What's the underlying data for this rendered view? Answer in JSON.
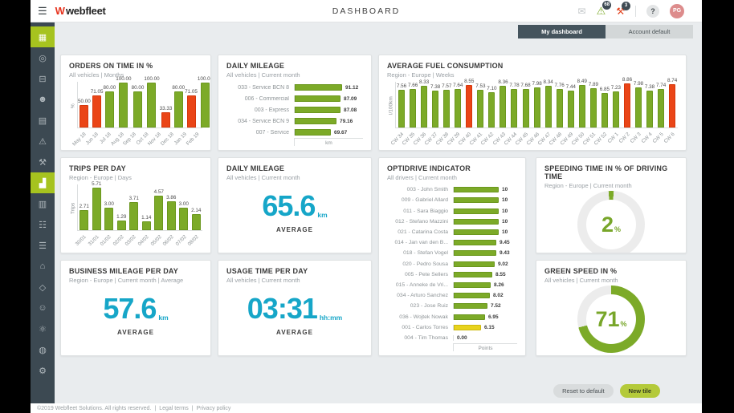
{
  "header": {
    "menu_icon": "☰",
    "logo_mark": "W",
    "logo_text": "webfleet",
    "title": "DASHBOARD",
    "icons": {
      "messages_glyph": "✉",
      "alerts_glyph": "⚠",
      "alerts_badge": "68",
      "maintenance_glyph": "⚒",
      "maintenance_badge": "3",
      "help_label": "?",
      "avatar_initials": "PG"
    }
  },
  "sidebar": {
    "items": [
      {
        "name": "map",
        "glyph": "▦",
        "active": true
      },
      {
        "name": "map-search",
        "glyph": "◎",
        "active": false
      },
      {
        "name": "vehicles",
        "glyph": "⊟",
        "active": false
      },
      {
        "name": "drivers",
        "glyph": "☻",
        "active": false
      },
      {
        "name": "orders",
        "glyph": "▤",
        "active": false
      },
      {
        "name": "alerts",
        "glyph": "⚠",
        "active": false
      },
      {
        "name": "maintenance",
        "glyph": "⚒",
        "active": false
      },
      {
        "name": "reports",
        "glyph": "▟",
        "active": true
      },
      {
        "name": "logbook",
        "glyph": "▥",
        "active": false
      },
      {
        "name": "print",
        "glyph": "☷",
        "active": false
      },
      {
        "name": "contacts",
        "glyph": "☰",
        "active": false
      },
      {
        "name": "company",
        "glyph": "⌂",
        "active": false
      },
      {
        "name": "areas",
        "glyph": "◇",
        "active": false
      },
      {
        "name": "users",
        "glyph": "☺",
        "active": false
      },
      {
        "name": "connections",
        "glyph": "⚛",
        "active": false
      },
      {
        "name": "webfleet-services",
        "glyph": "◍",
        "active": false
      },
      {
        "name": "settings",
        "glyph": "⚙",
        "active": false
      }
    ]
  },
  "tabs": [
    {
      "label": "My dashboard",
      "active": true
    },
    {
      "label": "Account default",
      "active": false
    }
  ],
  "tiles": [
    {
      "id": "orders-on-time",
      "title": "ORDERS ON TIME IN %",
      "subtitle": "All vehicles  |  Months",
      "type": "vbar",
      "chart": {
        "type": "bar",
        "ylabel": "%",
        "ymax": 100,
        "categories": [
          "May 18",
          "Jun 18",
          "Jul 18",
          "Aug 18",
          "Sep 18",
          "Oct 18",
          "Nov 18",
          "Dec 18",
          "Jan 19",
          "Feb 19"
        ],
        "values": [
          50.0,
          71.05,
          80.0,
          100.0,
          80.0,
          100.0,
          33.33,
          80.0,
          71.05,
          100.0
        ],
        "labels": [
          "50.00",
          "71.05",
          "80.00",
          "100.00",
          "80.00",
          "100.00",
          "33.33",
          "80.00",
          "71.05",
          "100.00"
        ],
        "colors": [
          "red",
          "red",
          "green",
          "green",
          "green",
          "green",
          "red",
          "green",
          "red",
          "green"
        ]
      }
    },
    {
      "id": "daily-mileage-bars",
      "title": "DAILY MILEAGE",
      "subtitle": "All vehicles  |  Current month",
      "type": "hbar",
      "chart": {
        "type": "bar",
        "orientation": "horizontal",
        "xlabel": "km",
        "xmax": 95,
        "categories": [
          "033 - Service BCN 8",
          "006 - Commercial",
          "003 - Express",
          "034 - Service BCN 9",
          "007 - Service"
        ],
        "values": [
          91.12,
          87.09,
          87.08,
          79.16,
          69.67
        ],
        "labels": [
          "91.12",
          "87.09",
          "87.08",
          "79.16",
          "69.67"
        ],
        "colors": [
          "green",
          "green",
          "green",
          "green",
          "green"
        ]
      }
    },
    {
      "id": "avg-fuel-consumption",
      "title": "AVERAGE FUEL CONSUMPTION",
      "subtitle": "Region - Europe  |  Weeks",
      "type": "vbar",
      "chart": {
        "type": "bar",
        "ylabel": "l/100km",
        "ymax": 9,
        "categories": [
          "CW 34",
          "CW 35",
          "CW 36",
          "CW 37",
          "CW 38",
          "CW 39",
          "CW 40",
          "CW 41",
          "CW 42",
          "CW 43",
          "CW 44",
          "CW 45",
          "CW 46",
          "CW 47",
          "CW 48",
          "CW 49",
          "CW 50",
          "CW 51",
          "CW 52",
          "CW 1",
          "CW 2",
          "CW 3",
          "CW 4",
          "CW 5",
          "CW 6"
        ],
        "values": [
          7.56,
          7.66,
          8.33,
          7.38,
          7.57,
          7.64,
          8.55,
          7.53,
          7.1,
          8.36,
          7.78,
          7.68,
          7.98,
          8.34,
          7.76,
          7.44,
          8.49,
          7.89,
          6.85,
          7.23,
          8.86,
          7.98,
          7.38,
          7.74,
          8.74
        ],
        "labels": [
          "7.56",
          "7.66",
          "8.33",
          "7.38",
          "7.57",
          "7.64",
          "8.55",
          "7.53",
          "7.10",
          "8.36",
          "7.78",
          "7.68",
          "7.98",
          "8.34",
          "7.76",
          "7.44",
          "8.49",
          "7.89",
          "6.85",
          "7.23",
          "8.86",
          "7.98",
          "7.38",
          "7.74",
          "8.74"
        ],
        "colors": [
          "green",
          "green",
          "green",
          "green",
          "green",
          "green",
          "red",
          "green",
          "green",
          "green",
          "green",
          "green",
          "green",
          "green",
          "green",
          "green",
          "green",
          "green",
          "green",
          "green",
          "red",
          "green",
          "green",
          "green",
          "red"
        ]
      }
    },
    {
      "id": "trips-per-day",
      "title": "TRIPS PER DAY",
      "subtitle": "Region - Europe  |  Days",
      "type": "vbar",
      "chart": {
        "type": "bar",
        "ylabel": "Trips",
        "ymax": 6,
        "categories": [
          "30/01",
          "31/01",
          "01/02",
          "02/02",
          "03/02",
          "04/02",
          "05/02",
          "06/02",
          "07/02",
          "08/02"
        ],
        "values": [
          2.71,
          5.71,
          3.0,
          1.29,
          3.71,
          1.14,
          4.57,
          3.86,
          3.0,
          2.14
        ],
        "labels": [
          "2.71",
          "5.71",
          "3.00",
          "1.29",
          "3.71",
          "1.14",
          "4.57",
          "3.86",
          "3.00",
          "2.14"
        ],
        "colors": [
          "green",
          "green",
          "green",
          "green",
          "green",
          "green",
          "green",
          "green",
          "green",
          "green"
        ]
      }
    },
    {
      "id": "daily-mileage-average",
      "title": "DAILY MILEAGE",
      "subtitle": "All vehicles  |  Current month",
      "type": "bignum",
      "value": "65.6",
      "unit": "km",
      "caption": "AVERAGE"
    },
    {
      "id": "optidrive-indicator",
      "title": "OPTIDRIVE INDICATOR",
      "subtitle": "All drivers  |  Current month",
      "type": "hbar",
      "chart": {
        "type": "bar",
        "orientation": "horizontal",
        "xlabel": "Points",
        "xmax": 10,
        "categories": [
          "003 - John Smith",
          "009 - Gabriel Allard",
          "011 - Sara Biaggio",
          "012 - Stefano Mazzini",
          "021 - Catarina Costa",
          "014 - Jan van den B...",
          "018 - Stefan Vogel",
          "020 - Pedro Sousa",
          "005 - Pete Sellers",
          "015 - Anneke de Vri...",
          "034 - Arturo Sanchez",
          "023 - Jose Ruiz",
          "036 - Wojtek Nowak",
          "001 - Carlos Torres",
          "004 - Tim Thomas"
        ],
        "values": [
          10,
          10,
          10,
          10,
          10,
          9.45,
          9.43,
          9.02,
          8.55,
          8.26,
          8.02,
          7.52,
          6.95,
          6.15,
          0.0
        ],
        "labels": [
          "10",
          "10",
          "10",
          "10",
          "10",
          "9.45",
          "9.43",
          "9.02",
          "8.55",
          "8.26",
          "8.02",
          "7.52",
          "6.95",
          "6.15",
          "0.00"
        ],
        "colors": [
          "green",
          "green",
          "green",
          "green",
          "green",
          "green",
          "green",
          "green",
          "green",
          "green",
          "green",
          "green",
          "green",
          "yellow",
          "green"
        ]
      }
    },
    {
      "id": "speeding-time",
      "title": "SPEEDING TIME IN % OF DRIVING TIME",
      "subtitle": "Region - Europe  |  Current month",
      "type": "donut",
      "value": "2",
      "unit": "%",
      "pct": 2.5,
      "centered_at_top": true
    },
    {
      "id": "business-mileage-per-day",
      "title": "BUSINESS MILEAGE PER DAY",
      "subtitle": "Region - Europe  |  Current month  |  Average",
      "type": "bignum",
      "value": "57.6",
      "unit": "km",
      "caption": "AVERAGE"
    },
    {
      "id": "usage-time-per-day",
      "title": "USAGE TIME PER DAY",
      "subtitle": "All vehicles  |  Current month",
      "type": "bignum",
      "value": "03:31",
      "unit": "hh:mm",
      "caption": "AVERAGE"
    },
    {
      "id": "green-speed",
      "title": "GREEN SPEED IN %",
      "subtitle": "All vehicles  |  Current month",
      "type": "donut",
      "value": "71",
      "unit": "%",
      "pct": 71,
      "centered_at_top": false
    }
  ],
  "actions": {
    "reset_label": "Reset to default",
    "new_tile_label": "New tile"
  },
  "footer": {
    "copyright": "©2019 Webfleet Solutions. All rights reserved.",
    "sep": "|",
    "links": [
      "Legal terms",
      "Privacy policy"
    ]
  },
  "colors": {
    "green": "#7caa28",
    "red": "#ea4517",
    "yellow": "#e8d31d",
    "teal": "#16a6c8",
    "sidebar_dark": "#3c4952",
    "active_lime": "#a6c31f",
    "donut_track": "#ececec"
  }
}
